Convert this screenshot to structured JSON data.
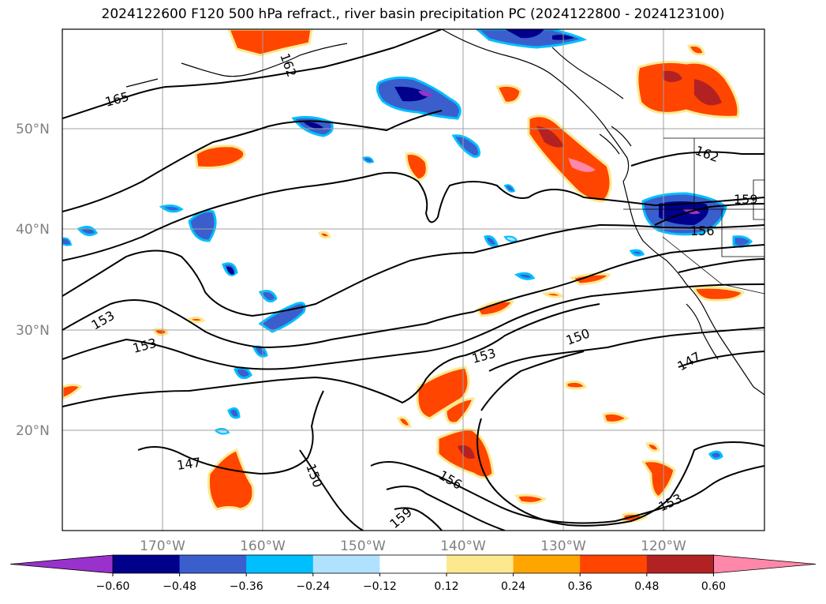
{
  "title": "2024122600 F120 500 hPa refract., river basin precipitation PC (2024122800 - 2024123100)",
  "map": {
    "lat_labels": [
      "50°N",
      "40°N",
      "30°N",
      "20°N"
    ],
    "lon_labels": [
      "170°W",
      "160°W",
      "150°W",
      "140°W",
      "130°W",
      "120°W"
    ],
    "contour_labels": [
      "165",
      "162",
      "162",
      "159",
      "156",
      "153",
      "153",
      "153",
      "150",
      "150",
      "147",
      "147",
      "156",
      "159",
      "153"
    ]
  },
  "colorbar": {
    "ticks": [
      "−0.60",
      "−0.48",
      "−0.36",
      "−0.24",
      "−0.12",
      "0.12",
      "0.24",
      "0.36",
      "0.48",
      "0.60"
    ],
    "colors": [
      "#9932cc",
      "#00008b",
      "#3a5fcd",
      "#00bfff",
      "#b0e2ff",
      "#ffffff",
      "#fce98f",
      "#ffa500",
      "#ff4500",
      "#b22222",
      "#ff88aa"
    ]
  },
  "chart_data": {
    "type": "heatmap",
    "title": "2024122600 F120 500 hPa refract., river basin precipitation PC (2024122800 - 2024123100)",
    "xlabel": "",
    "ylabel": "",
    "x_ticks": [
      "170°W",
      "160°W",
      "150°W",
      "140°W",
      "130°W",
      "120°W"
    ],
    "y_ticks": [
      "50°N",
      "40°N",
      "30°N",
      "20°N"
    ],
    "xlim": [
      "180°W",
      "110°W"
    ],
    "ylim": [
      "10°N",
      "60°N"
    ],
    "colorbar_levels": [
      -0.6,
      -0.48,
      -0.36,
      -0.24,
      -0.12,
      0.12,
      0.24,
      0.36,
      0.48,
      0.6
    ],
    "contour_levels": [
      147,
      150,
      153,
      156,
      159,
      162,
      165
    ],
    "grid": true
  }
}
